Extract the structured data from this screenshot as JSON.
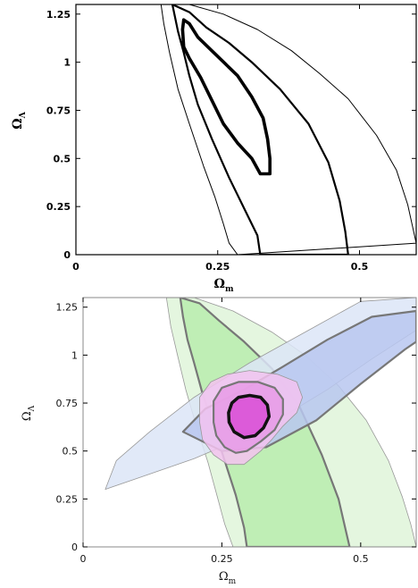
{
  "chart_data": [
    {
      "type": "contour",
      "xlabel": "Ω",
      "xlabel_sub": "m",
      "ylabel": "Ω",
      "ylabel_sub": "Λ",
      "xlim": [
        0,
        0.6
      ],
      "ylim": [
        0,
        1.3
      ],
      "xticks": [
        "0",
        "0.25",
        "0.5"
      ],
      "yticks": [
        "0",
        "0.25",
        "0.5",
        "0.75",
        "1",
        "1.25"
      ],
      "grid": false,
      "series": [
        {
          "level": "inner",
          "color": "#000000",
          "points": [
            [
              0.19,
              1.22
            ],
            [
              0.2,
              1.2
            ],
            [
              0.215,
              1.13
            ],
            [
              0.25,
              1.03
            ],
            [
              0.285,
              0.93
            ],
            [
              0.31,
              0.82
            ],
            [
              0.33,
              0.71
            ],
            [
              0.338,
              0.6
            ],
            [
              0.342,
              0.5
            ],
            [
              0.342,
              0.42
            ],
            [
              0.325,
              0.42
            ],
            [
              0.31,
              0.5
            ],
            [
              0.285,
              0.58
            ],
            [
              0.26,
              0.68
            ],
            [
              0.24,
              0.8
            ],
            [
              0.22,
              0.92
            ],
            [
              0.2,
              1.02
            ],
            [
              0.19,
              1.08
            ],
            [
              0.188,
              1.17
            ],
            [
              0.19,
              1.22
            ]
          ]
        },
        {
          "level": "middle",
          "color": "#000000",
          "points": [
            [
              0.17,
              1.3
            ],
            [
              0.2,
              1.26
            ],
            [
              0.23,
              1.18
            ],
            [
              0.27,
              1.1
            ],
            [
              0.31,
              1.0
            ],
            [
              0.36,
              0.86
            ],
            [
              0.41,
              0.68
            ],
            [
              0.445,
              0.48
            ],
            [
              0.465,
              0.28
            ],
            [
              0.475,
              0.12
            ],
            [
              0.48,
              0
            ],
            [
              0.325,
              0
            ],
            [
              0.32,
              0.1
            ],
            [
              0.3,
              0.22
            ],
            [
              0.27,
              0.4
            ],
            [
              0.24,
              0.6
            ],
            [
              0.215,
              0.78
            ],
            [
              0.2,
              0.93
            ],
            [
              0.19,
              1.05
            ],
            [
              0.18,
              1.16
            ],
            [
              0.17,
              1.3
            ]
          ]
        },
        {
          "level": "outer",
          "color": "#000000",
          "points": [
            [
              0.15,
              1.3
            ],
            [
              0.2,
              1.3
            ],
            [
              0.26,
              1.25
            ],
            [
              0.32,
              1.17
            ],
            [
              0.38,
              1.06
            ],
            [
              0.43,
              0.94
            ],
            [
              0.48,
              0.81
            ],
            [
              0.53,
              0.62
            ],
            [
              0.565,
              0.44
            ],
            [
              0.585,
              0.26
            ],
            [
              0.597,
              0.1
            ],
            [
              0.6,
              0.06
            ],
            [
              0.285,
              0
            ],
            [
              0.27,
              0.06
            ],
            [
              0.26,
              0.16
            ],
            [
              0.245,
              0.3
            ],
            [
              0.225,
              0.46
            ],
            [
              0.2,
              0.68
            ],
            [
              0.18,
              0.86
            ],
            [
              0.165,
              1.05
            ],
            [
              0.155,
              1.2
            ],
            [
              0.15,
              1.3
            ]
          ]
        }
      ]
    },
    {
      "type": "contour",
      "xlabel": "Ω",
      "xlabel_sub": "m",
      "ylabel": "Ω",
      "ylabel_sub": "Λ",
      "xlim": [
        0,
        0.6
      ],
      "ylim": [
        0,
        1.3
      ],
      "xticks": [
        "0",
        "0.25",
        "0.5"
      ],
      "yticks": [
        "0",
        "0.25",
        "0.5",
        "0.75",
        "1",
        "1.25"
      ],
      "grid": false,
      "series": [
        {
          "name": "",
          "color": "#dff5d9",
          "points": [
            [
              0.15,
              1.3
            ],
            [
              0.2,
              1.3
            ],
            [
              0.27,
              1.23
            ],
            [
              0.34,
              1.12
            ],
            [
              0.4,
              1.0
            ],
            [
              0.46,
              0.84
            ],
            [
              0.51,
              0.66
            ],
            [
              0.55,
              0.45
            ],
            [
              0.575,
              0.26
            ],
            [
              0.59,
              0.12
            ],
            [
              0.6,
              0.0
            ],
            [
              0.27,
              0.0
            ],
            [
              0.255,
              0.12
            ],
            [
              0.24,
              0.28
            ],
            [
              0.225,
              0.44
            ],
            [
              0.205,
              0.62
            ],
            [
              0.185,
              0.82
            ],
            [
              0.17,
              1.0
            ],
            [
              0.158,
              1.15
            ],
            [
              0.15,
              1.3
            ]
          ]
        },
        {
          "name": "",
          "color": "#b9ecae",
          "points": [
            [
              0.175,
              1.3
            ],
            [
              0.21,
              1.27
            ],
            [
              0.245,
              1.18
            ],
            [
              0.29,
              1.07
            ],
            [
              0.34,
              0.93
            ],
            [
              0.39,
              0.73
            ],
            [
              0.43,
              0.48
            ],
            [
              0.46,
              0.25
            ],
            [
              0.48,
              0.0
            ],
            [
              0.295,
              0.0
            ],
            [
              0.29,
              0.1
            ],
            [
              0.275,
              0.27
            ],
            [
              0.255,
              0.45
            ],
            [
              0.235,
              0.63
            ],
            [
              0.215,
              0.8
            ],
            [
              0.2,
              0.96
            ],
            [
              0.188,
              1.08
            ],
            [
              0.18,
              1.2
            ],
            [
              0.175,
              1.3
            ]
          ]
        },
        {
          "name": "",
          "color": "#dce5f7",
          "points": [
            [
              0.04,
              0.3
            ],
            [
              0.1,
              0.36
            ],
            [
              0.2,
              0.46
            ],
            [
              0.28,
              0.56
            ],
            [
              0.36,
              0.68
            ],
            [
              0.44,
              0.82
            ],
            [
              0.52,
              0.98
            ],
            [
              0.6,
              1.13
            ],
            [
              0.6,
              1.3
            ],
            [
              0.5,
              1.28
            ],
            [
              0.4,
              1.12
            ],
            [
              0.3,
              0.96
            ],
            [
              0.2,
              0.78
            ],
            [
              0.12,
              0.6
            ],
            [
              0.06,
              0.45
            ],
            [
              0.04,
              0.3
            ]
          ]
        },
        {
          "name": "",
          "color": "#b8c7f0",
          "points": [
            [
              0.18,
              0.6
            ],
            [
              0.25,
              0.5
            ],
            [
              0.33,
              0.52
            ],
            [
              0.42,
              0.66
            ],
            [
              0.5,
              0.85
            ],
            [
              0.58,
              1.03
            ],
            [
              0.6,
              1.07
            ],
            [
              0.6,
              1.23
            ],
            [
              0.52,
              1.2
            ],
            [
              0.44,
              1.08
            ],
            [
              0.36,
              0.94
            ],
            [
              0.29,
              0.82
            ],
            [
              0.22,
              0.72
            ],
            [
              0.18,
              0.6
            ]
          ]
        },
        {
          "name": "",
          "color": "#f3c2f0",
          "points": [
            [
              0.21,
              0.78
            ],
            [
              0.23,
              0.86
            ],
            [
              0.26,
              0.9
            ],
            [
              0.3,
              0.92
            ],
            [
              0.35,
              0.9
            ],
            [
              0.385,
              0.86
            ],
            [
              0.395,
              0.78
            ],
            [
              0.385,
              0.7
            ],
            [
              0.36,
              0.63
            ],
            [
              0.34,
              0.56
            ],
            [
              0.32,
              0.5
            ],
            [
              0.29,
              0.43
            ],
            [
              0.26,
              0.43
            ],
            [
              0.235,
              0.48
            ],
            [
              0.215,
              0.56
            ],
            [
              0.21,
              0.65
            ],
            [
              0.21,
              0.78
            ]
          ]
        },
        {
          "name": "",
          "color": "#e89be6",
          "points": [
            [
              0.235,
              0.76
            ],
            [
              0.25,
              0.83
            ],
            [
              0.28,
              0.86
            ],
            [
              0.315,
              0.86
            ],
            [
              0.345,
              0.83
            ],
            [
              0.36,
              0.77
            ],
            [
              0.36,
              0.69
            ],
            [
              0.345,
              0.61
            ],
            [
              0.32,
              0.55
            ],
            [
              0.295,
              0.5
            ],
            [
              0.275,
              0.49
            ],
            [
              0.255,
              0.52
            ],
            [
              0.24,
              0.58
            ],
            [
              0.235,
              0.65
            ],
            [
              0.235,
              0.76
            ]
          ]
        },
        {
          "name": "",
          "color": "#d94fd6",
          "points": [
            [
              0.262,
              0.7
            ],
            [
              0.268,
              0.75
            ],
            [
              0.28,
              0.78
            ],
            [
              0.3,
              0.79
            ],
            [
              0.32,
              0.78
            ],
            [
              0.332,
              0.74
            ],
            [
              0.335,
              0.68
            ],
            [
              0.325,
              0.62
            ],
            [
              0.31,
              0.58
            ],
            [
              0.29,
              0.57
            ],
            [
              0.272,
              0.6
            ],
            [
              0.263,
              0.65
            ],
            [
              0.262,
              0.7
            ]
          ]
        }
      ]
    }
  ]
}
